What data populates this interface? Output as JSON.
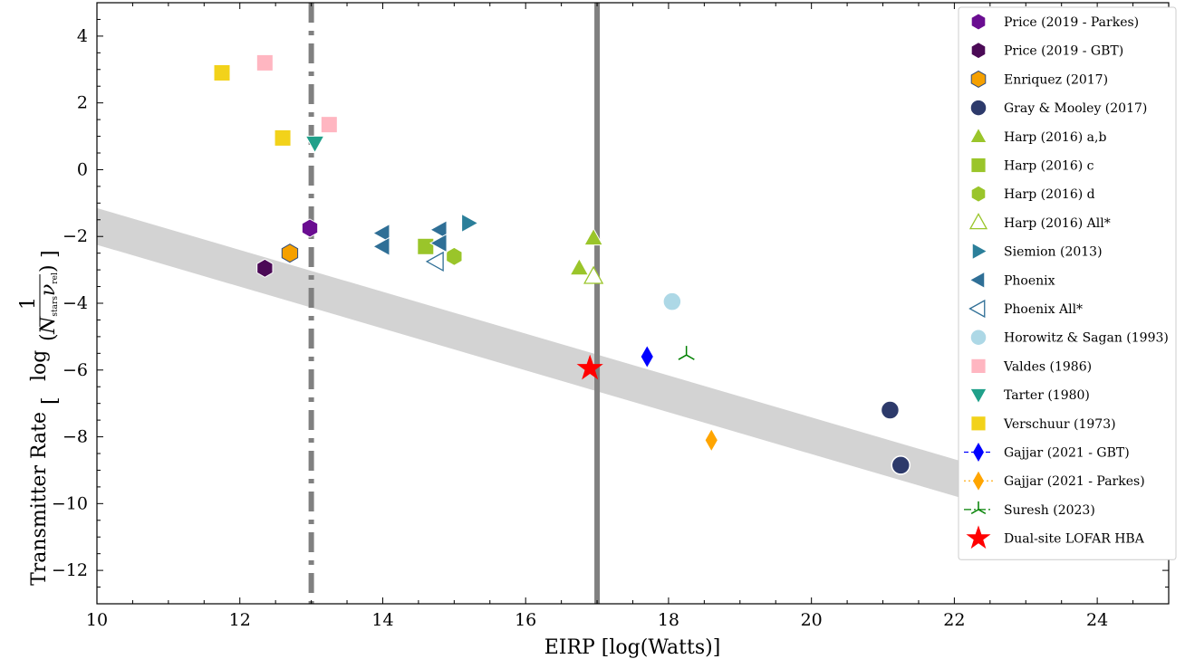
{
  "chart_data": {
    "type": "scatter",
    "xlabel": "EIRP [log(Watts)]",
    "ylabel": "Transmitter Rate",
    "ylabel_expr": {
      "pre": "log",
      "num": "1",
      "den_base": "N",
      "den_sub": "stars",
      "den_var": "ν",
      "den_sub2": "rel"
    },
    "xlim": [
      10,
      25
    ],
    "ylim": [
      -13,
      5
    ],
    "xticks": [
      10,
      12,
      14,
      16,
      18,
      20,
      22,
      24
    ],
    "yticks": [
      -12,
      -10,
      -8,
      -6,
      -4,
      -2,
      0,
      2,
      4
    ],
    "grid": false,
    "legend_position": "top-right",
    "band": {
      "x": [
        10,
        25
      ],
      "y_center": [
        -1.7,
        -11.1
      ],
      "half_width": 0.55,
      "color": "#d3d3d3"
    },
    "vlines": [
      {
        "x": 13.0,
        "style": "dashdot",
        "color": "#808080"
      },
      {
        "x": 17.0,
        "style": "solid",
        "color": "#808080"
      }
    ],
    "series": [
      {
        "name": "Price (2019 - Parkes)",
        "marker": "hexagon",
        "color": "#6a0d91",
        "edge": "#ffffff",
        "points": [
          [
            12.98,
            -1.75
          ]
        ]
      },
      {
        "name": "Price (2019 - GBT)",
        "marker": "hexagon",
        "color": "#4b0a56",
        "edge": "#ffffff",
        "points": [
          [
            12.35,
            -2.95
          ]
        ]
      },
      {
        "name": "Enriquez (2017)",
        "marker": "hexagon",
        "color": "#f5a000",
        "edge": "#2f4b7c",
        "points": [
          [
            12.7,
            -2.5
          ]
        ]
      },
      {
        "name": "Gray & Mooley (2017)",
        "marker": "circle",
        "color": "#2d3a6b",
        "edge": "#ffffff",
        "points": [
          [
            21.1,
            -7.2
          ],
          [
            21.25,
            -8.85
          ]
        ]
      },
      {
        "name": "Harp (2016) a,b",
        "marker": "triangle-up",
        "color": "#9ac52a",
        "edge": "#ffffff",
        "points": [
          [
            16.75,
            -2.95
          ],
          [
            16.95,
            -2.05
          ]
        ]
      },
      {
        "name": "Harp (2016) c",
        "marker": "square",
        "color": "#9ac52a",
        "edge": "#ffffff",
        "points": [
          [
            14.6,
            -2.3
          ]
        ]
      },
      {
        "name": "Harp (2016) d",
        "marker": "hexagon",
        "color": "#9ac52a",
        "edge": "#ffffff",
        "points": [
          [
            15.0,
            -2.6
          ]
        ]
      },
      {
        "name": "Harp (2016) All*",
        "marker": "triangle-up-open",
        "color": "#9ac52a",
        "edge": "#9ac52a",
        "points": [
          [
            16.95,
            -3.2
          ]
        ]
      },
      {
        "name": "Siemion (2013)",
        "marker": "triangle-right",
        "color": "#2b7f9a",
        "edge": "#ffffff",
        "points": [
          [
            15.2,
            -1.6
          ]
        ]
      },
      {
        "name": "Phoenix",
        "marker": "triangle-left",
        "color": "#2f6f96",
        "edge": "#ffffff",
        "points": [
          [
            14.0,
            -1.9
          ],
          [
            14.0,
            -2.3
          ],
          [
            14.8,
            -1.8
          ],
          [
            14.8,
            -2.2
          ]
        ]
      },
      {
        "name": "Phoenix All*",
        "marker": "triangle-left-open",
        "color": "#2f6f96",
        "edge": "#2f6f96",
        "points": [
          [
            14.75,
            -2.75
          ]
        ]
      },
      {
        "name": "Horowitz & Sagan (1993)",
        "marker": "circle",
        "color": "#add8e6",
        "edge": "#ffffff",
        "points": [
          [
            18.05,
            -3.95
          ]
        ]
      },
      {
        "name": "Valdes (1986)",
        "marker": "square",
        "color": "#ffb6c1",
        "edge": "#ffffff",
        "points": [
          [
            12.35,
            3.2
          ],
          [
            13.25,
            1.35
          ]
        ]
      },
      {
        "name": "Tarter (1980)",
        "marker": "triangle-down",
        "color": "#20a08a",
        "edge": "#ffffff",
        "points": [
          [
            13.05,
            0.8
          ]
        ]
      },
      {
        "name": "Verschuur (1973)",
        "marker": "square",
        "color": "#f2d21a",
        "edge": "#ffffff",
        "points": [
          [
            11.75,
            2.9
          ],
          [
            12.6,
            0.95
          ]
        ]
      },
      {
        "name": "Gajjar (2021 - GBT)",
        "marker": "thin-diamond",
        "color": "#0000ff",
        "edge": "#0000ff",
        "line": "dashed",
        "points": [
          [
            17.7,
            -5.6
          ]
        ]
      },
      {
        "name": "Gajjar (2021 - Parkes)",
        "marker": "thin-diamond",
        "color": "#ffa500",
        "edge": "#ffa500",
        "line": "dotted",
        "points": [
          [
            18.6,
            -8.1
          ]
        ]
      },
      {
        "name": "Suresh (2023)",
        "marker": "tri-up",
        "color": "#008000",
        "edge": "#008000",
        "line": "dashdot",
        "points": [
          [
            18.25,
            -5.55
          ]
        ]
      },
      {
        "name": "Dual-site LOFAR HBA",
        "marker": "star",
        "color": "#ff0000",
        "edge": "#ff0000",
        "points": [
          [
            16.9,
            -5.95
          ]
        ]
      }
    ]
  }
}
